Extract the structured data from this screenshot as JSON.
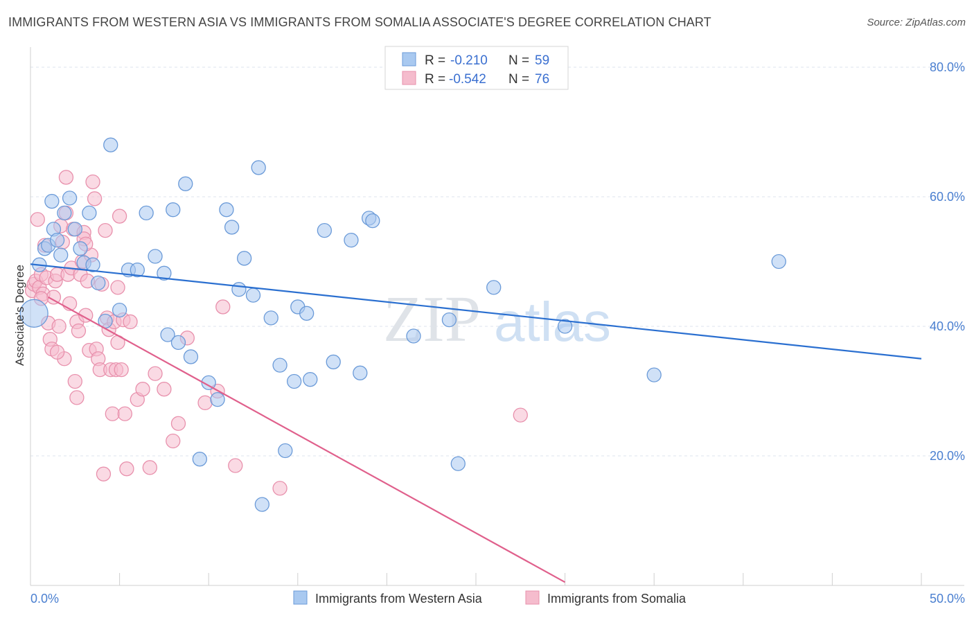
{
  "title": "IMMIGRANTS FROM WESTERN ASIA VS IMMIGRANTS FROM SOMALIA ASSOCIATE'S DEGREE CORRELATION CHART",
  "source": "Source: ZipAtlas.com",
  "watermark": {
    "zip": "ZIP",
    "atlas": "atlas"
  },
  "colors": {
    "blue_fill": "#a9c9f0",
    "blue_stroke": "#6a9ad8",
    "blue_line": "#2a6fd0",
    "pink_fill": "#f5bccd",
    "pink_stroke": "#e890ac",
    "pink_line": "#e0608c",
    "grid": "#dde3ec",
    "axis_text": "#4a7fd0"
  },
  "legend": [
    {
      "r_label": "R =",
      "r_value": "-0.210",
      "n_label": "N =",
      "n_value": "59"
    },
    {
      "r_label": "R =",
      "r_value": "-0.542",
      "n_label": "N =",
      "n_value": "76"
    }
  ],
  "chart_data": {
    "type": "scatter",
    "title": "IMMIGRANTS FROM WESTERN ASIA VS IMMIGRANTS FROM SOMALIA ASSOCIATE'S DEGREE CORRELATION CHART",
    "xlabel": "",
    "ylabel": "Associate's Degree",
    "xlim": [
      0,
      50
    ],
    "ylim": [
      0,
      80
    ],
    "x_tick_labels": [
      "0.0%",
      "50.0%"
    ],
    "y_ticks": [
      20,
      40,
      60,
      80
    ],
    "y_tick_labels": [
      "20.0%",
      "40.0%",
      "60.0%",
      "80.0%"
    ],
    "grid": true,
    "legend_position": "bottom",
    "series": [
      {
        "name": "Immigrants from Western Asia",
        "color": "blue",
        "trend": {
          "x": [
            0,
            50
          ],
          "y": [
            49.6,
            35.0
          ]
        },
        "points": [
          [
            0.2,
            42.0
          ],
          [
            0.5,
            49.5
          ],
          [
            0.8,
            52.0
          ],
          [
            1.0,
            52.5
          ],
          [
            1.2,
            59.3
          ],
          [
            1.3,
            55.0
          ],
          [
            1.5,
            53.3
          ],
          [
            1.7,
            51.0
          ],
          [
            1.9,
            57.5
          ],
          [
            2.2,
            59.8
          ],
          [
            2.5,
            55.0
          ],
          [
            2.8,
            52.0
          ],
          [
            3.0,
            49.8
          ],
          [
            3.3,
            57.5
          ],
          [
            3.5,
            49.5
          ],
          [
            3.8,
            46.7
          ],
          [
            4.2,
            40.8
          ],
          [
            4.5,
            68.0
          ],
          [
            5.0,
            42.5
          ],
          [
            5.5,
            48.7
          ],
          [
            6.0,
            48.7
          ],
          [
            6.5,
            57.5
          ],
          [
            7.0,
            50.8
          ],
          [
            7.5,
            48.2
          ],
          [
            7.7,
            38.7
          ],
          [
            8.0,
            58.0
          ],
          [
            8.3,
            37.5
          ],
          [
            8.7,
            62.0
          ],
          [
            9.0,
            35.3
          ],
          [
            9.5,
            19.5
          ],
          [
            10.0,
            31.3
          ],
          [
            10.5,
            28.7
          ],
          [
            11.0,
            58.0
          ],
          [
            11.3,
            55.3
          ],
          [
            11.7,
            45.7
          ],
          [
            12.0,
            50.5
          ],
          [
            12.5,
            44.8
          ],
          [
            12.8,
            64.5
          ],
          [
            13.0,
            12.5
          ],
          [
            13.5,
            41.3
          ],
          [
            14.0,
            34.0
          ],
          [
            14.3,
            20.8
          ],
          [
            14.8,
            31.5
          ],
          [
            15.0,
            43.0
          ],
          [
            15.5,
            42.0
          ],
          [
            15.7,
            31.8
          ],
          [
            16.5,
            54.8
          ],
          [
            17.0,
            34.5
          ],
          [
            18.0,
            53.3
          ],
          [
            18.5,
            32.8
          ],
          [
            19.0,
            56.7
          ],
          [
            19.2,
            56.3
          ],
          [
            21.5,
            38.5
          ],
          [
            23.5,
            41.0
          ],
          [
            24.0,
            18.8
          ],
          [
            26.0,
            46.0
          ],
          [
            30.0,
            40.0
          ],
          [
            35.0,
            32.5
          ],
          [
            42.0,
            50.0
          ]
        ]
      },
      {
        "name": "Immigrants from Somalia",
        "color": "pink",
        "trend": {
          "x": [
            1.0,
            30.0
          ],
          "y": [
            44.5,
            0.5
          ]
        },
        "points": [
          [
            0.1,
            45.5
          ],
          [
            0.2,
            46.5
          ],
          [
            0.3,
            47.0
          ],
          [
            0.4,
            56.5
          ],
          [
            0.5,
            46.0
          ],
          [
            0.6,
            48.0
          ],
          [
            0.7,
            45.0
          ],
          [
            0.8,
            52.5
          ],
          [
            0.9,
            47.5
          ],
          [
            1.0,
            40.5
          ],
          [
            1.1,
            38.0
          ],
          [
            1.2,
            36.5
          ],
          [
            1.3,
            44.5
          ],
          [
            1.4,
            47.0
          ],
          [
            1.5,
            48.0
          ],
          [
            1.6,
            40.0
          ],
          [
            1.7,
            55.5
          ],
          [
            1.8,
            53.0
          ],
          [
            1.9,
            35.0
          ],
          [
            2.0,
            63.0
          ],
          [
            2.0,
            57.5
          ],
          [
            2.1,
            48.0
          ],
          [
            2.2,
            43.5
          ],
          [
            2.3,
            49.0
          ],
          [
            2.4,
            55.0
          ],
          [
            2.5,
            31.5
          ],
          [
            2.6,
            40.7
          ],
          [
            2.7,
            39.3
          ],
          [
            2.8,
            48.0
          ],
          [
            2.9,
            50.0
          ],
          [
            3.0,
            54.5
          ],
          [
            3.0,
            53.5
          ],
          [
            3.1,
            41.7
          ],
          [
            3.2,
            47.0
          ],
          [
            3.3,
            36.3
          ],
          [
            3.4,
            51.0
          ],
          [
            3.5,
            62.3
          ],
          [
            3.6,
            59.7
          ],
          [
            3.7,
            36.5
          ],
          [
            3.8,
            35.0
          ],
          [
            3.9,
            33.3
          ],
          [
            4.0,
            46.5
          ],
          [
            4.1,
            17.2
          ],
          [
            4.2,
            54.8
          ],
          [
            4.3,
            41.3
          ],
          [
            4.4,
            39.5
          ],
          [
            4.5,
            33.3
          ],
          [
            4.6,
            26.5
          ],
          [
            4.7,
            40.7
          ],
          [
            4.8,
            33.3
          ],
          [
            4.9,
            46.0
          ],
          [
            5.0,
            57.0
          ],
          [
            5.1,
            33.3
          ],
          [
            5.2,
            41.0
          ],
          [
            5.3,
            26.5
          ],
          [
            5.4,
            18.0
          ],
          [
            5.6,
            40.7
          ],
          [
            6.0,
            28.7
          ],
          [
            6.3,
            30.3
          ],
          [
            6.7,
            18.2
          ],
          [
            7.0,
            32.7
          ],
          [
            7.5,
            30.3
          ],
          [
            8.0,
            22.3
          ],
          [
            8.3,
            25.0
          ],
          [
            8.8,
            38.2
          ],
          [
            9.8,
            28.2
          ],
          [
            10.5,
            30.0
          ],
          [
            10.8,
            43.0
          ],
          [
            11.5,
            18.5
          ],
          [
            14.0,
            15.0
          ],
          [
            27.5,
            26.3
          ],
          [
            0.6,
            44.3
          ],
          [
            1.5,
            36.0
          ],
          [
            2.6,
            29.0
          ],
          [
            3.1,
            52.7
          ],
          [
            4.9,
            37.5
          ]
        ]
      }
    ]
  }
}
